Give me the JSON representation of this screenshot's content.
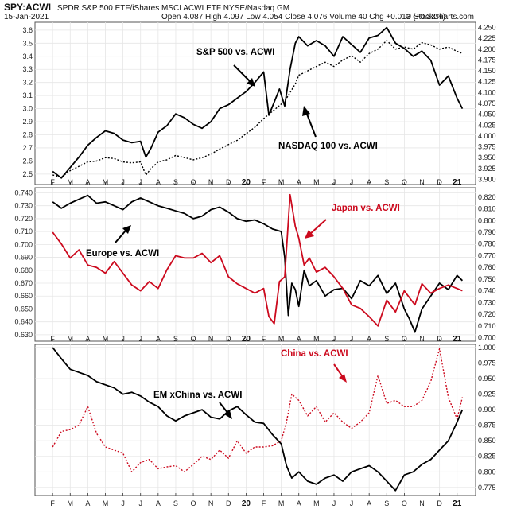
{
  "header": {
    "symbol": "SPY:ACWI",
    "description": "SPDR S&P 500 ETF/iShares MSCI ACWI ETF  NYSE/Nasdaq GM",
    "date": "15-Jan-2021",
    "quote": "Open 4.087  High 4.097  Low 4.054  Close 4.076  Volume 40  Chg +0.013 (+0.32%)",
    "watermark": "© StockCharts.com"
  },
  "x_axis": {
    "labels": [
      "F",
      "M",
      "A",
      "M",
      "J",
      "J",
      "A",
      "S",
      "O",
      "N",
      "D",
      "20",
      "F",
      "M",
      "A",
      "M",
      "J",
      "J",
      "A",
      "S",
      "O",
      "N",
      "D",
      "21"
    ],
    "bold_labels": [
      "20",
      "21"
    ]
  },
  "chart_data": [
    {
      "type": "line",
      "name": "panel-1",
      "left_axis": {
        "ylim": [
          2.42,
          3.66
        ],
        "ticks": [
          "2.5",
          "2.6",
          "2.7",
          "2.8",
          "2.9",
          "3.0",
          "3.1",
          "3.2",
          "3.3",
          "3.4",
          "3.5",
          "3.6"
        ]
      },
      "right_axis": {
        "ylim": [
          3.888,
          4.262
        ],
        "ticks": [
          "3.900",
          "3.925",
          "3.950",
          "3.975",
          "4.000",
          "4.025",
          "4.050",
          "4.075",
          "4.100",
          "4.125",
          "4.150",
          "4.175",
          "4.200",
          "4.225",
          "4.250"
        ]
      },
      "series": [
        {
          "name": "S&P 500 vs. ACWI",
          "axis": "left",
          "color": "#000000",
          "dash": false,
          "x": [
            0,
            0.5,
            1,
            1.5,
            2,
            2.5,
            3,
            3.5,
            4,
            4.5,
            5,
            5.3,
            5.6,
            6,
            6.5,
            7,
            7.5,
            8,
            8.5,
            9,
            9.5,
            10,
            10.5,
            11,
            11.5,
            12,
            12.3,
            12.6,
            12.9,
            13.2,
            13.5,
            13.8,
            14,
            14.5,
            15,
            15.5,
            16,
            16.5,
            17,
            17.5,
            18,
            18.5,
            19,
            19.5,
            20,
            20.5,
            21,
            21.5,
            22,
            22.5,
            23,
            23.3
          ],
          "y": [
            2.52,
            2.47,
            2.55,
            2.63,
            2.72,
            2.78,
            2.83,
            2.81,
            2.76,
            2.74,
            2.75,
            2.63,
            2.7,
            2.82,
            2.87,
            2.96,
            2.93,
            2.88,
            2.85,
            2.9,
            3.0,
            3.03,
            3.08,
            3.13,
            3.2,
            3.28,
            2.95,
            3.05,
            3.15,
            3.02,
            3.3,
            3.5,
            3.55,
            3.48,
            3.52,
            3.48,
            3.4,
            3.55,
            3.49,
            3.43,
            3.54,
            3.56,
            3.62,
            3.5,
            3.46,
            3.4,
            3.44,
            3.37,
            3.18,
            3.25,
            3.08,
            3.0
          ]
        },
        {
          "name": "NASDAQ 100 vs. ACWI",
          "axis": "right",
          "color": "#000000",
          "dash": true,
          "x": [
            0,
            0.5,
            1,
            1.5,
            2,
            2.5,
            3,
            3.5,
            4,
            4.5,
            5,
            5.3,
            5.6,
            6,
            6.5,
            7,
            7.5,
            8,
            8.5,
            9,
            9.5,
            10,
            10.5,
            11,
            11.5,
            12,
            12.3,
            12.6,
            12.9,
            13.2,
            13.5,
            13.8,
            14,
            14.5,
            15,
            15.5,
            16,
            16.5,
            17,
            17.5,
            18,
            18.5,
            19,
            19.5,
            20,
            20.5,
            21,
            21.5,
            22,
            22.5,
            23,
            23.3
          ],
          "y": [
            3.91,
            3.905,
            3.92,
            3.93,
            3.94,
            3.942,
            3.95,
            3.948,
            3.94,
            3.938,
            3.94,
            3.91,
            3.925,
            3.94,
            3.945,
            3.955,
            3.95,
            3.945,
            3.95,
            3.958,
            3.97,
            3.98,
            3.99,
            4.005,
            4.02,
            4.04,
            4.05,
            4.06,
            4.07,
            4.08,
            4.1,
            4.12,
            4.14,
            4.15,
            4.16,
            4.17,
            4.16,
            4.175,
            4.185,
            4.17,
            4.19,
            4.2,
            4.22,
            4.2,
            4.205,
            4.2,
            4.215,
            4.21,
            4.2,
            4.205,
            4.195,
            4.19
          ]
        }
      ],
      "annotations": [
        "S&P 500 vs. ACWI",
        "NASDAQ 100 vs. ACWI"
      ]
    },
    {
      "type": "line",
      "name": "panel-2",
      "left_axis": {
        "ylim": [
          0.625,
          0.744
        ],
        "ticks": [
          "0.630",
          "0.640",
          "0.650",
          "0.660",
          "0.670",
          "0.680",
          "0.690",
          "0.700",
          "0.710",
          "0.720",
          "0.730",
          "0.740"
        ]
      },
      "right_axis": {
        "ylim": [
          0.697,
          0.828
        ],
        "ticks": [
          "0.700",
          "0.710",
          "0.720",
          "0.730",
          "0.740",
          "0.750",
          "0.760",
          "0.770",
          "0.780",
          "0.790",
          "0.800",
          "0.810",
          "0.820"
        ]
      },
      "series": [
        {
          "name": "Europe vs. ACWI",
          "axis": "left",
          "color": "#000000",
          "dash": false,
          "x": [
            0,
            0.5,
            1,
            1.5,
            2,
            2.5,
            3,
            3.5,
            4,
            4.5,
            5,
            5.5,
            6,
            6.5,
            7,
            7.5,
            8,
            8.5,
            9,
            9.5,
            10,
            10.5,
            11,
            11.5,
            12,
            12.5,
            13,
            13.2,
            13.4,
            13.6,
            13.8,
            14,
            14.3,
            14.6,
            15,
            15.5,
            16,
            16.5,
            17,
            17.5,
            18,
            18.5,
            19,
            19.5,
            20,
            20.3,
            20.6,
            21,
            21.5,
            22,
            22.5,
            23,
            23.3
          ],
          "y": [
            0.733,
            0.728,
            0.732,
            0.735,
            0.738,
            0.732,
            0.733,
            0.73,
            0.727,
            0.733,
            0.736,
            0.733,
            0.73,
            0.728,
            0.726,
            0.724,
            0.72,
            0.722,
            0.727,
            0.729,
            0.725,
            0.72,
            0.718,
            0.719,
            0.716,
            0.712,
            0.71,
            0.69,
            0.645,
            0.67,
            0.665,
            0.652,
            0.68,
            0.668,
            0.672,
            0.66,
            0.665,
            0.666,
            0.658,
            0.672,
            0.668,
            0.676,
            0.662,
            0.67,
            0.65,
            0.642,
            0.632,
            0.65,
            0.66,
            0.67,
            0.665,
            0.676,
            0.672
          ]
        },
        {
          "name": "Japan vs. ACWI",
          "axis": "right",
          "color": "#cc0a1e",
          "dash": false,
          "x": [
            0,
            0.5,
            1,
            1.5,
            2,
            2.5,
            3,
            3.5,
            4,
            4.5,
            5,
            5.5,
            6,
            6.5,
            7,
            7.5,
            8,
            8.5,
            9,
            9.5,
            10,
            10.5,
            11,
            11.5,
            12,
            12.3,
            12.6,
            12.9,
            13.2,
            13.5,
            13.8,
            14,
            14.3,
            14.6,
            15,
            15.5,
            16,
            16.5,
            17,
            17.5,
            18,
            18.5,
            19,
            19.5,
            20,
            20.3,
            20.6,
            21,
            21.5,
            22,
            22.5,
            23,
            23.3
          ],
          "y": [
            0.79,
            0.78,
            0.768,
            0.775,
            0.762,
            0.76,
            0.755,
            0.765,
            0.755,
            0.745,
            0.74,
            0.748,
            0.742,
            0.758,
            0.77,
            0.768,
            0.768,
            0.772,
            0.764,
            0.77,
            0.752,
            0.746,
            0.742,
            0.738,
            0.742,
            0.718,
            0.712,
            0.748,
            0.752,
            0.822,
            0.795,
            0.785,
            0.762,
            0.768,
            0.756,
            0.76,
            0.752,
            0.742,
            0.728,
            0.725,
            0.718,
            0.71,
            0.732,
            0.722,
            0.74,
            0.734,
            0.728,
            0.746,
            0.738,
            0.742,
            0.745,
            0.742,
            0.74
          ]
        }
      ],
      "annotations": [
        "Japan vs. ACWI",
        "Europe vs. ACWI"
      ]
    },
    {
      "type": "line",
      "name": "panel-3",
      "left_axis": {
        "ylim": [
          0.0,
          1.0
        ],
        "ticks": []
      },
      "right_axis": {
        "ylim": [
          0.762,
          1.005
        ],
        "ticks": [
          "0.775",
          "0.800",
          "0.825",
          "0.850",
          "0.875",
          "0.900",
          "0.925",
          "0.950",
          "0.975",
          "1.000"
        ]
      },
      "series": [
        {
          "name": "EM xChina vs. ACWI",
          "axis": "right",
          "color": "#000000",
          "dash": false,
          "x": [
            0,
            0.5,
            1,
            1.5,
            2,
            2.5,
            3,
            3.5,
            4,
            4.5,
            5,
            5.5,
            6,
            6.5,
            7,
            7.5,
            8,
            8.5,
            9,
            9.5,
            10,
            10.5,
            11,
            11.5,
            12,
            12.5,
            13,
            13.3,
            13.6,
            14,
            14.5,
            15,
            15.5,
            16,
            16.5,
            17,
            17.5,
            18,
            18.5,
            19,
            19.5,
            20,
            20.5,
            21,
            21.5,
            22,
            22.5,
            23,
            23.3
          ],
          "y": [
            1.0,
            0.982,
            0.965,
            0.96,
            0.955,
            0.945,
            0.94,
            0.935,
            0.925,
            0.928,
            0.922,
            0.912,
            0.905,
            0.89,
            0.882,
            0.89,
            0.895,
            0.9,
            0.888,
            0.885,
            0.898,
            0.905,
            0.892,
            0.88,
            0.878,
            0.86,
            0.845,
            0.81,
            0.79,
            0.8,
            0.785,
            0.78,
            0.79,
            0.795,
            0.785,
            0.8,
            0.805,
            0.81,
            0.8,
            0.785,
            0.77,
            0.795,
            0.8,
            0.812,
            0.82,
            0.835,
            0.85,
            0.88,
            0.9
          ]
        },
        {
          "name": "China vs. ACWI",
          "axis": "right",
          "color": "#cc0a1e",
          "dash": true,
          "x": [
            0,
            0.5,
            1,
            1.5,
            2,
            2.5,
            3,
            3.5,
            4,
            4.5,
            5,
            5.5,
            6,
            6.5,
            7,
            7.5,
            8,
            8.5,
            9,
            9.5,
            10,
            10.5,
            11,
            11.5,
            12,
            12.5,
            13,
            13.3,
            13.6,
            14,
            14.5,
            15,
            15.5,
            16,
            16.5,
            17,
            17.5,
            18,
            18.5,
            19,
            19.5,
            20,
            20.5,
            21,
            21.5,
            22,
            22.5,
            23,
            23.3
          ],
          "y": [
            0.84,
            0.865,
            0.868,
            0.875,
            0.905,
            0.862,
            0.84,
            0.835,
            0.83,
            0.8,
            0.815,
            0.82,
            0.805,
            0.808,
            0.81,
            0.8,
            0.812,
            0.825,
            0.82,
            0.835,
            0.822,
            0.85,
            0.83,
            0.84,
            0.84,
            0.842,
            0.85,
            0.88,
            0.925,
            0.915,
            0.89,
            0.905,
            0.88,
            0.895,
            0.88,
            0.87,
            0.88,
            0.895,
            0.955,
            0.91,
            0.915,
            0.905,
            0.905,
            0.915,
            0.945,
            0.998,
            0.92,
            0.885,
            0.92
          ]
        }
      ],
      "annotations": [
        "China vs. ACWI",
        "EM xChina vs. ACWI"
      ]
    }
  ]
}
